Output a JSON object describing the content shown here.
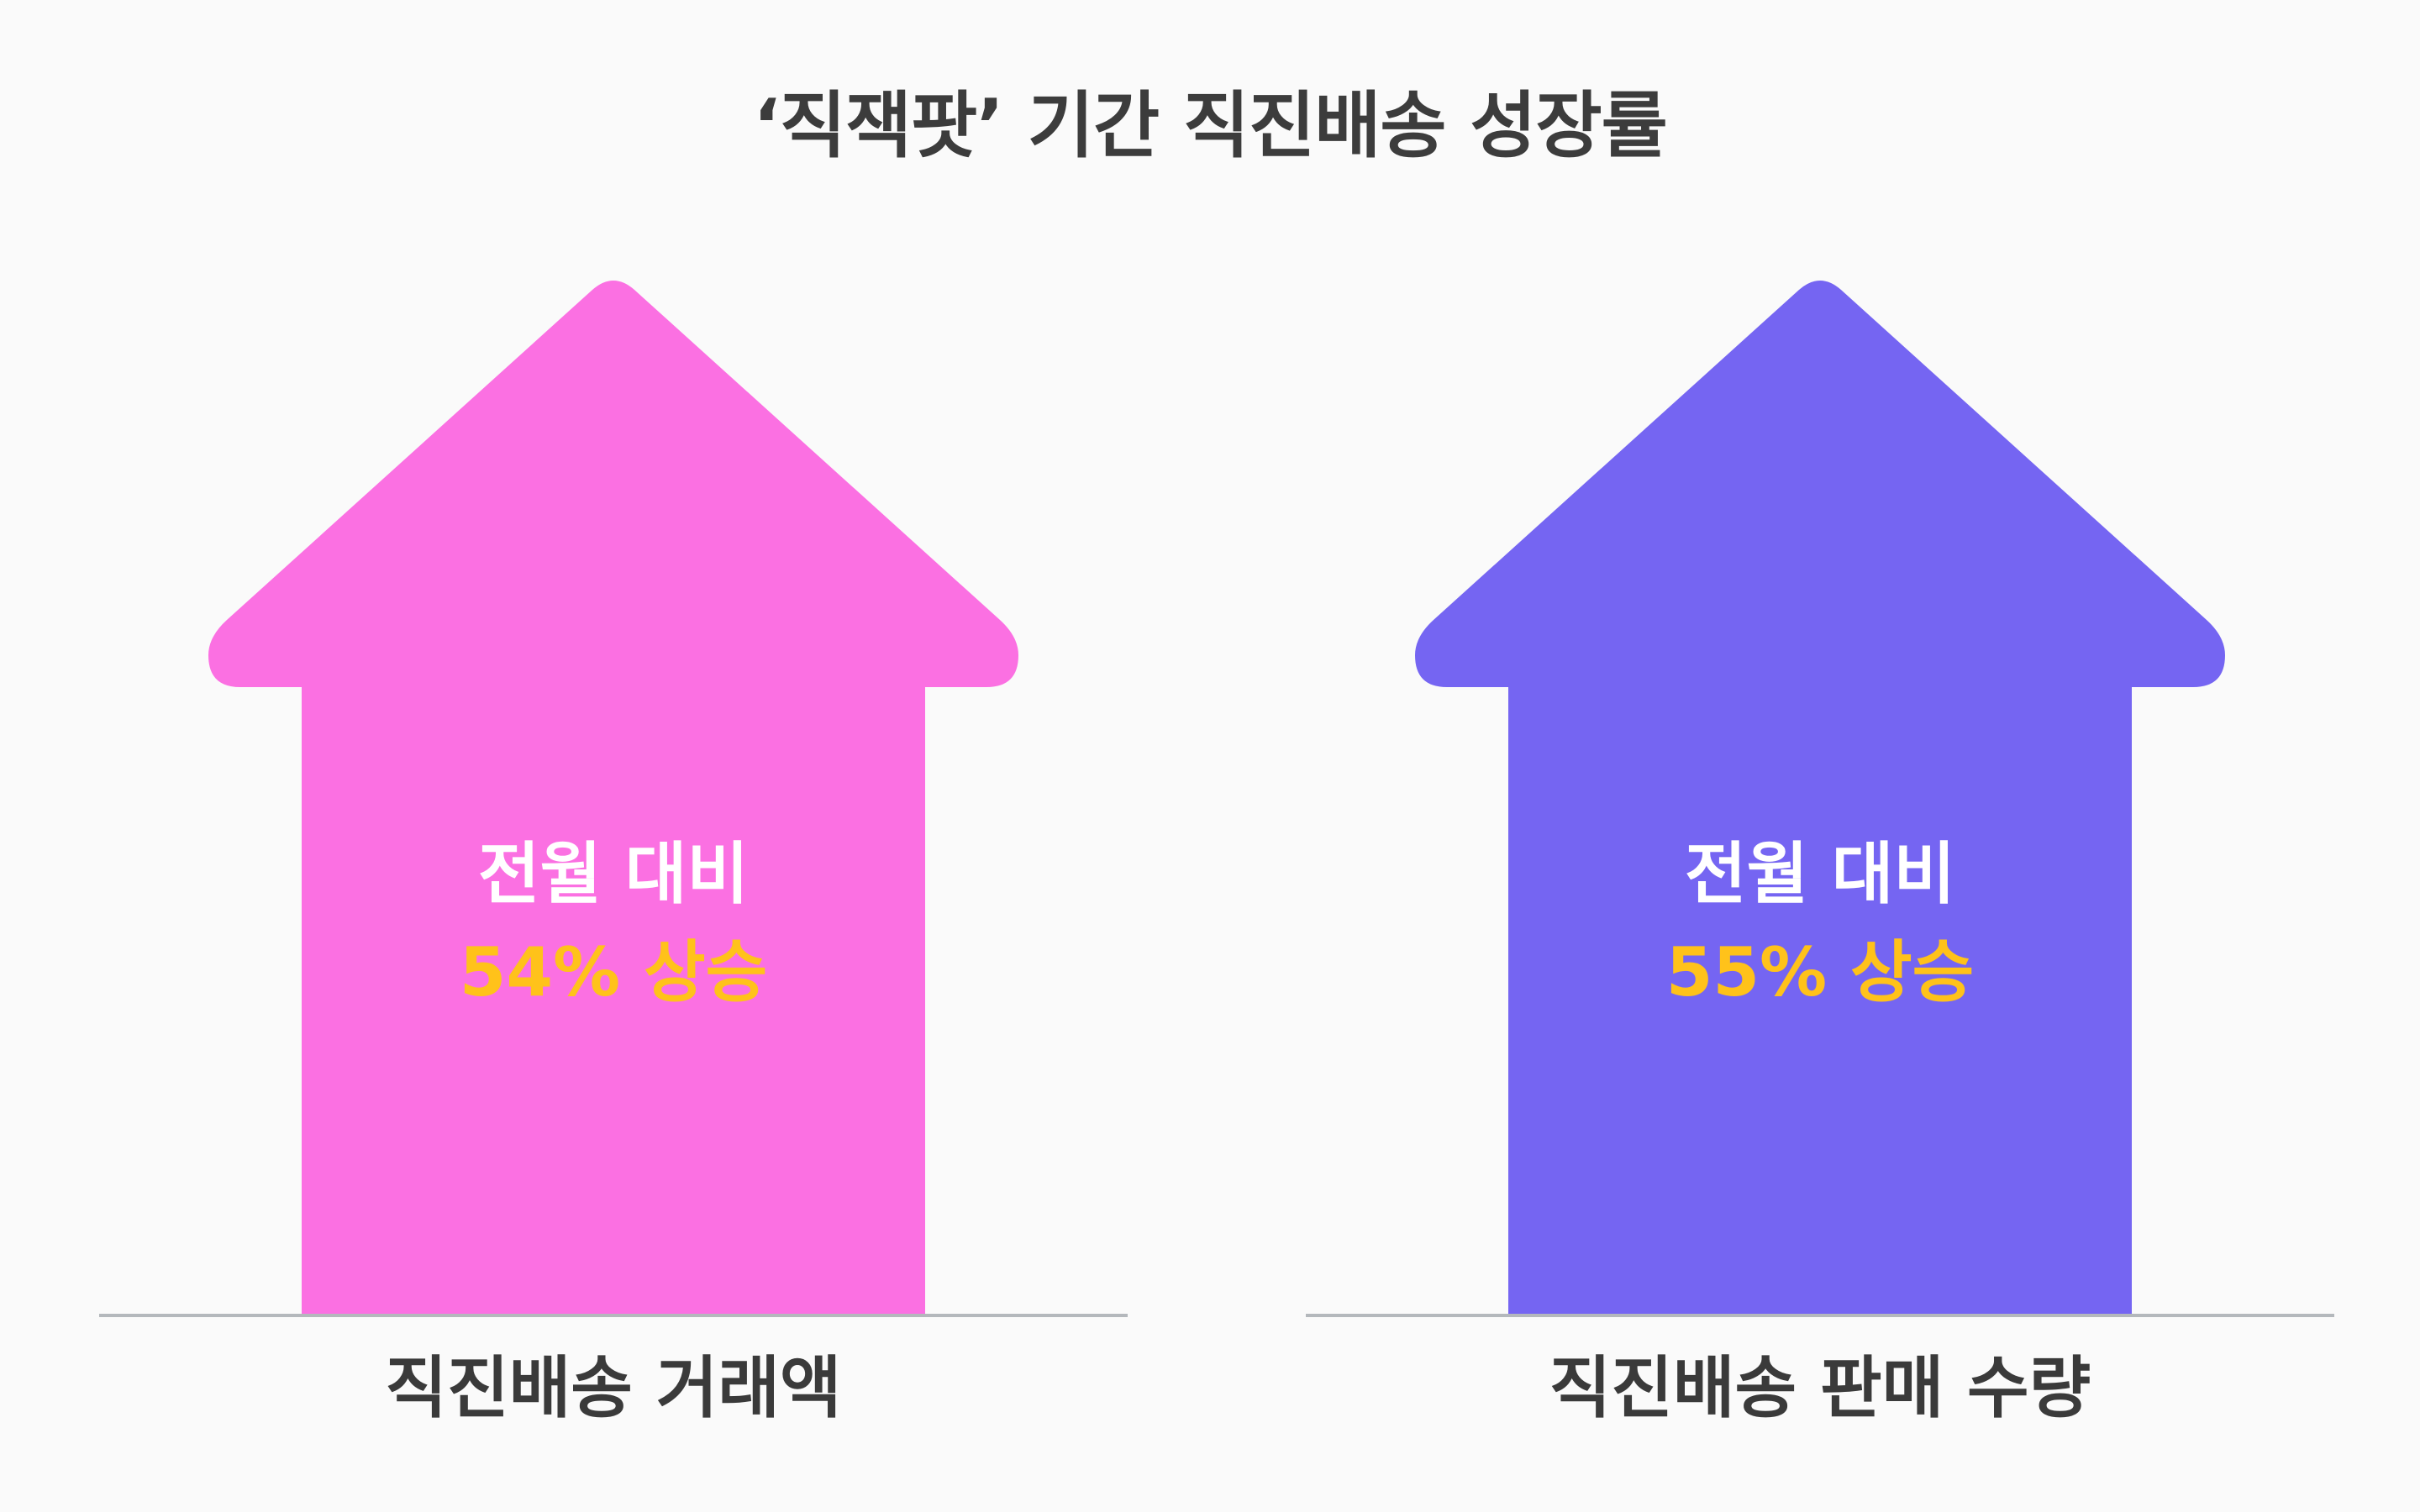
{
  "chart_data": {
    "type": "bar",
    "title": "‘직잭팟’ 기간 직진배송 성장률",
    "categories": [
      "직진배송 거래액",
      "직진배송 판매 수량"
    ],
    "series": [
      {
        "values": [
          54,
          55
        ]
      }
    ],
    "annotations": [
      {
        "line1": "전월 대비",
        "line2": "54% 상승"
      },
      {
        "line1": "전월 대비",
        "line2": "55% 상승"
      }
    ],
    "colors": [
      "#fb70e2",
      "#7565f2"
    ],
    "value_color": "#ffc21a",
    "baseline_color": "#b4b8bc"
  }
}
